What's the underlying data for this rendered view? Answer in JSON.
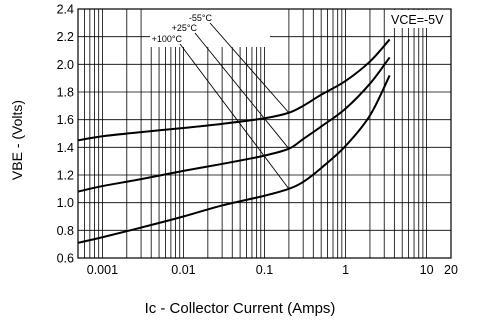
{
  "chart_data": {
    "type": "line",
    "xlabel": "Ic - Collector Current (Amps)",
    "ylabel": "VBE - (Volts)",
    "x_scale": "log",
    "xlim": [
      0.0005,
      20
    ],
    "ylim": [
      0.6,
      2.4
    ],
    "grid": true,
    "x_ticks": [
      0.001,
      0.01,
      0.1,
      1,
      10,
      20
    ],
    "x_tick_labels": [
      "0.001",
      "0.01",
      "0.1",
      "1",
      "10",
      "20"
    ],
    "y_ticks": [
      0.6,
      0.8,
      1.0,
      1.2,
      1.4,
      1.6,
      1.8,
      2.0,
      2.2,
      2.4
    ],
    "y_tick_labels": [
      "0.6",
      "0.8",
      "1.0",
      "1.2",
      "1.4",
      "1.6",
      "1.8",
      "2.0",
      "2.2",
      "2.4"
    ],
    "condition": "VCE=-5V",
    "series": [
      {
        "name": "-55°C",
        "x": [
          0.0005,
          0.001,
          0.003,
          0.01,
          0.03,
          0.1,
          0.2,
          0.3,
          0.5,
          1,
          2,
          3.5
        ],
        "y": [
          1.45,
          1.48,
          1.51,
          1.54,
          1.57,
          1.61,
          1.65,
          1.7,
          1.78,
          1.88,
          2.02,
          2.18
        ]
      },
      {
        "name": "+25°C",
        "x": [
          0.0005,
          0.001,
          0.003,
          0.01,
          0.03,
          0.1,
          0.2,
          0.3,
          0.5,
          1,
          2,
          3.5
        ],
        "y": [
          1.08,
          1.12,
          1.17,
          1.23,
          1.28,
          1.34,
          1.39,
          1.46,
          1.55,
          1.68,
          1.86,
          2.05
        ]
      },
      {
        "name": "+100°C",
        "x": [
          0.0005,
          0.001,
          0.003,
          0.01,
          0.03,
          0.1,
          0.2,
          0.3,
          0.5,
          1,
          2,
          3.5
        ],
        "y": [
          0.71,
          0.75,
          0.82,
          0.9,
          0.98,
          1.05,
          1.1,
          1.15,
          1.25,
          1.41,
          1.63,
          1.92
        ]
      }
    ]
  }
}
